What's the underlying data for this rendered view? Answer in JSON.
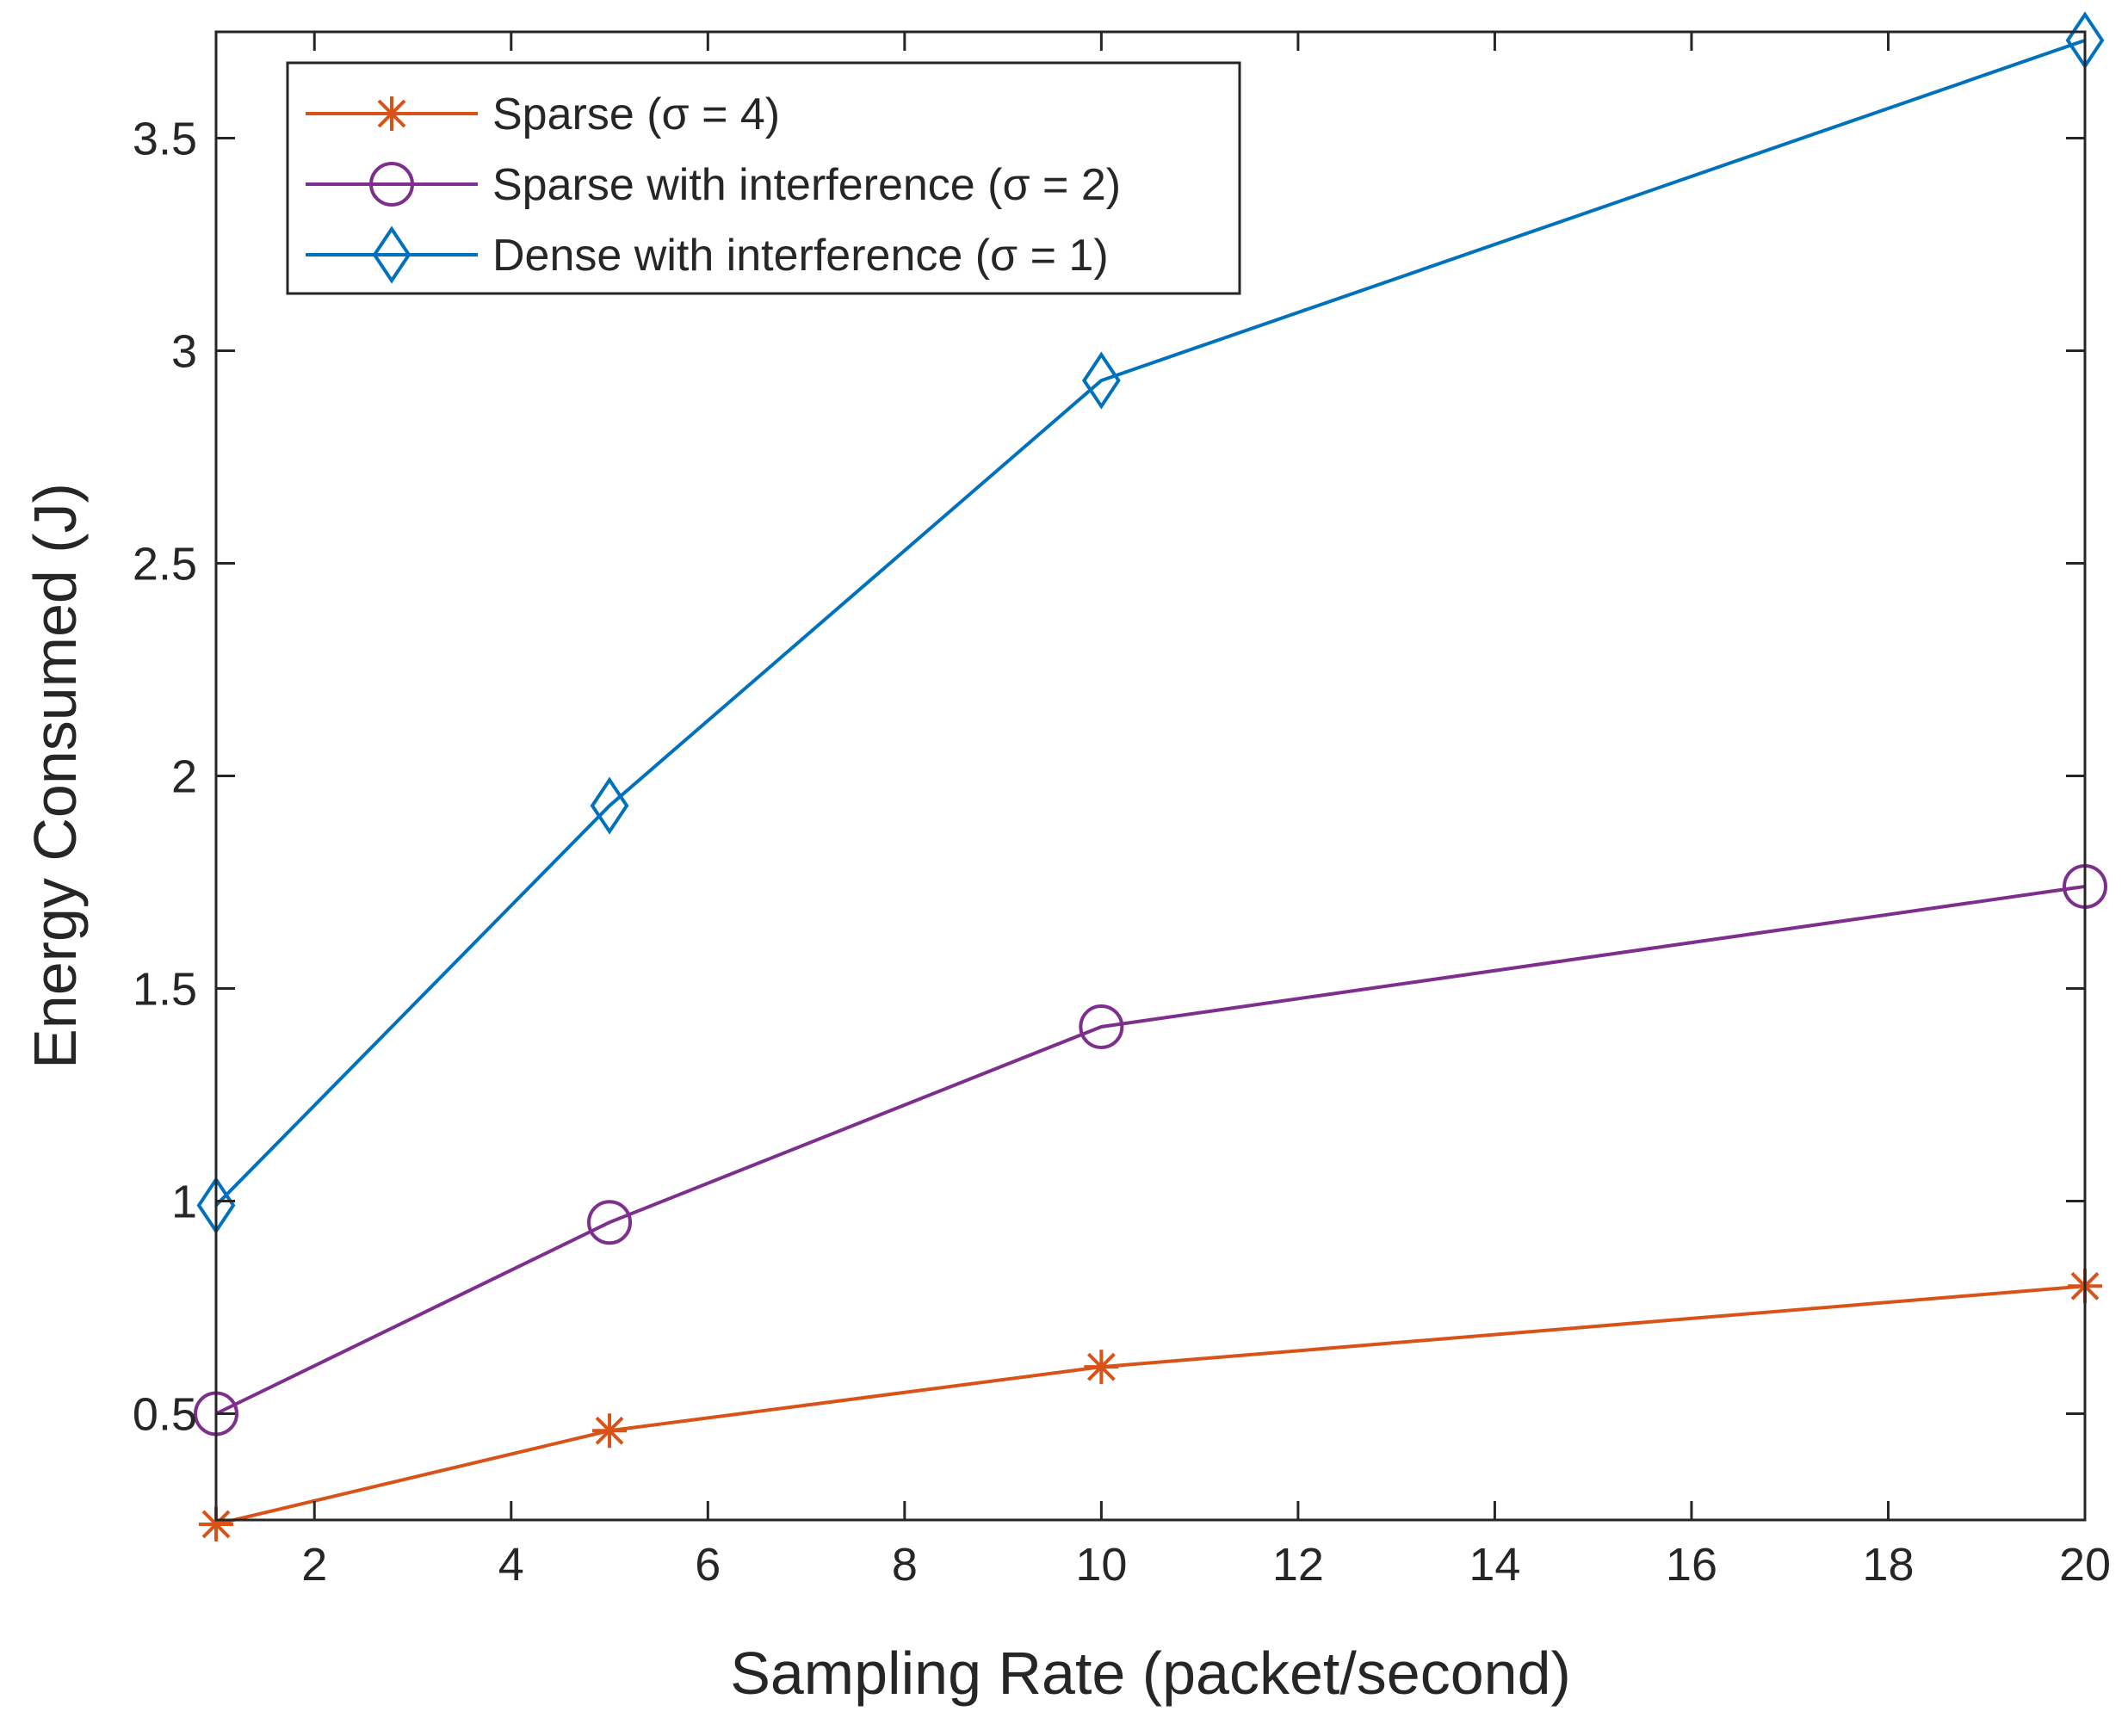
{
  "chart_data": {
    "type": "line",
    "title": "",
    "xlabel": "Sampling Rate (packet/second)",
    "ylabel": "Energy Consumed (J)",
    "xlim": [
      1,
      20
    ],
    "ylim": [
      0.25,
      3.75
    ],
    "xticks": [
      2,
      4,
      6,
      8,
      10,
      12,
      14,
      16,
      18,
      20
    ],
    "yticks": [
      0.5,
      1,
      1.5,
      2,
      2.5,
      3,
      3.5
    ],
    "xtick_labels": [
      "2",
      "4",
      "6",
      "8",
      "10",
      "12",
      "14",
      "16",
      "18",
      "20"
    ],
    "ytick_labels": [
      "0.5",
      "1",
      "1.5",
      "2",
      "2.5",
      "3",
      "3.5"
    ],
    "grid": false,
    "legend_position": "top-left",
    "series": [
      {
        "name": "Sparse (σ = 4)",
        "color": "#D95319",
        "marker": "asterisk",
        "x": [
          1,
          5,
          10,
          20
        ],
        "y": [
          0.24,
          0.46,
          0.61,
          0.8
        ]
      },
      {
        "name": "Sparse with interference (σ = 2)",
        "color": "#7E2F8E",
        "marker": "circle",
        "x": [
          1,
          5,
          10,
          20
        ],
        "y": [
          0.5,
          0.95,
          1.41,
          1.74
        ]
      },
      {
        "name": "Dense with interference (σ = 1)",
        "color": "#0072BD",
        "marker": "diamond",
        "x": [
          1,
          5,
          10,
          20
        ],
        "y": [
          0.99,
          1.93,
          2.93,
          3.73
        ]
      }
    ]
  }
}
